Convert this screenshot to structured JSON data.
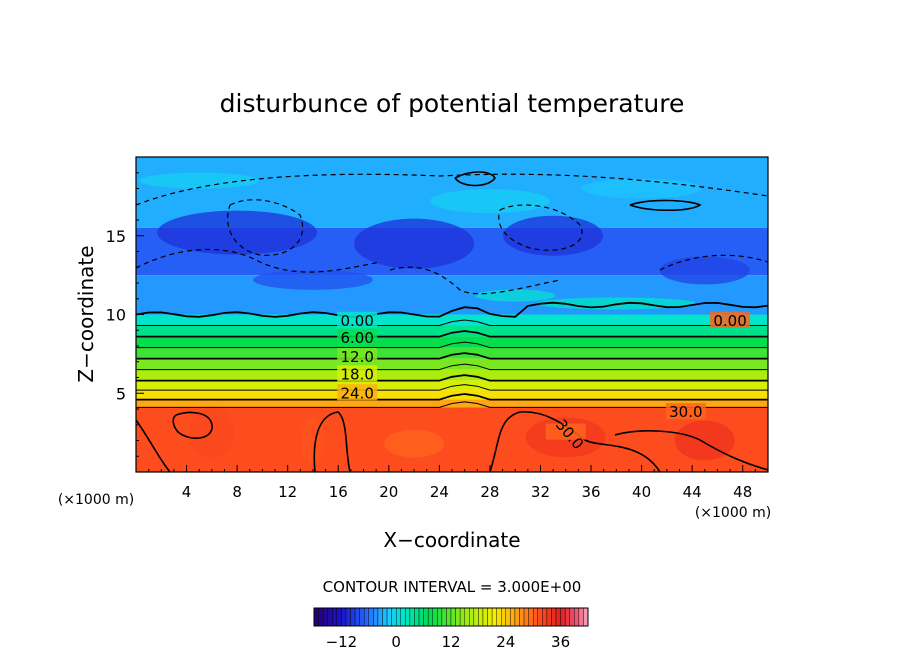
{
  "chart_data": {
    "type": "heatmap",
    "title": "disturbunce of potential temperature",
    "xlabel": "X−coordinate",
    "ylabel": "Z−coordinate",
    "x_unit_left": "(×1000 m)",
    "x_unit_right": "(×1000 m)",
    "xlim": [
      0,
      50
    ],
    "ylim": [
      0,
      20
    ],
    "x_ticks": [
      4,
      8,
      12,
      16,
      20,
      24,
      28,
      32,
      36,
      40,
      44,
      48
    ],
    "y_ticks": [
      5,
      10,
      15
    ],
    "contour_interval_text": "CONTOUR INTERVAL = 3.000E+00",
    "contour_labels": [
      {
        "text": "0.00",
        "x": 17.5,
        "z": 9.6
      },
      {
        "text": "6.00",
        "x": 17.5,
        "z": 8.5
      },
      {
        "text": "12.0",
        "x": 17.5,
        "z": 7.3
      },
      {
        "text": "18.0",
        "x": 17.5,
        "z": 6.2
      },
      {
        "text": "24.0",
        "x": 17.5,
        "z": 5.0
      },
      {
        "text": "30.0",
        "x": 43.5,
        "z": 3.8
      },
      {
        "text": "30.0",
        "x": 34.0,
        "z": 2.5
      },
      {
        "text": "0.00",
        "x": 47.0,
        "z": 9.6
      }
    ],
    "layers": [
      {
        "z_top": 20.0,
        "value": -3
      },
      {
        "z_top": 15.5,
        "value": -7
      },
      {
        "z_top": 12.5,
        "value": -4
      },
      {
        "z_top": 10.0,
        "value": 1.5
      },
      {
        "z_top": 9.3,
        "value": 4.5
      },
      {
        "z_top": 8.6,
        "value": 7.5
      },
      {
        "z_top": 7.9,
        "value": 10.5
      },
      {
        "z_top": 7.2,
        "value": 13.5
      },
      {
        "z_top": 6.5,
        "value": 16.5
      },
      {
        "z_top": 5.8,
        "value": 19.5
      },
      {
        "z_top": 5.2,
        "value": 22.5
      },
      {
        "z_top": 4.6,
        "value": 26
      },
      {
        "z_top": 4.1,
        "value": 31.5
      }
    ],
    "colorbar": {
      "min": -18,
      "max": 42,
      "ticks": [
        -12,
        0,
        12,
        24,
        36
      ]
    }
  }
}
